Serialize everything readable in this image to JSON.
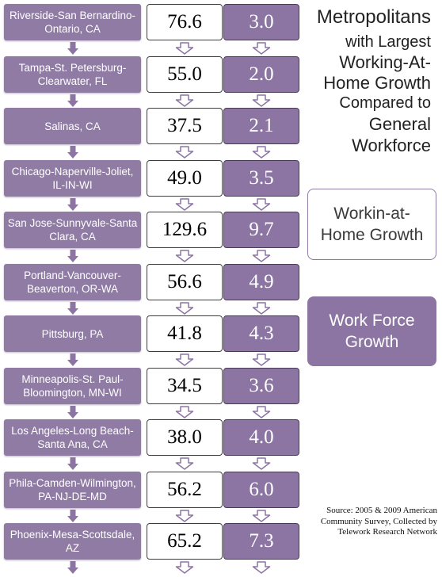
{
  "title": [
    "Metropolitans",
    "with Largest",
    "Working-At-",
    "Home Growth",
    "Compared to",
    "General",
    "Workforce"
  ],
  "legend": {
    "working_at_home": "Workin-at-Home Growth",
    "work_force": "Work Force Growth"
  },
  "source": "Source: 2005 & 2009 American Community Survey, Collected by Telework Research Network",
  "colors": {
    "metro_fill": "#8f7ba4",
    "work_force_fill": "#8c75a3",
    "legend_fill": "#8c75a3",
    "arrow_fill": "#8c75a3"
  },
  "rows": [
    {
      "metro": "Riverside-San Bernardino-Ontario, CA",
      "working_at_home_growth": "76.6",
      "work_force_growth": "3.0"
    },
    {
      "metro": "Tampa-St. Petersburg-Clearwater, FL",
      "working_at_home_growth": "55.0",
      "work_force_growth": "2.0"
    },
    {
      "metro": "Salinas, CA",
      "working_at_home_growth": "37.5",
      "work_force_growth": "2.1"
    },
    {
      "metro": "Chicago-Naperville-Joliet, IL-IN-WI",
      "working_at_home_growth": "49.0",
      "work_force_growth": "3.5"
    },
    {
      "metro": "San Jose-Sunnyvale-Santa Clara, CA",
      "working_at_home_growth": "129.6",
      "work_force_growth": "9.7"
    },
    {
      "metro": "Portland-Vancouver-Beaverton, OR-WA",
      "working_at_home_growth": "56.6",
      "work_force_growth": "4.9"
    },
    {
      "metro": "Pittsburg, PA",
      "working_at_home_growth": "41.8",
      "work_force_growth": "4.3"
    },
    {
      "metro": "Minneapolis-St. Paul-Bloomington, MN-WI",
      "working_at_home_growth": "34.5",
      "work_force_growth": "3.6"
    },
    {
      "metro": "Los Angeles-Long Beach-Santa Ana, CA",
      "working_at_home_growth": "38.0",
      "work_force_growth": "4.0"
    },
    {
      "metro": "Phila-Camden-Wilmington, PA-NJ-DE-MD",
      "working_at_home_growth": "56.2",
      "work_force_growth": "6.0"
    },
    {
      "metro": "Phoenix-Mesa-Scottsdale, AZ",
      "working_at_home_growth": "65.2",
      "work_force_growth": "7.3"
    }
  ]
}
